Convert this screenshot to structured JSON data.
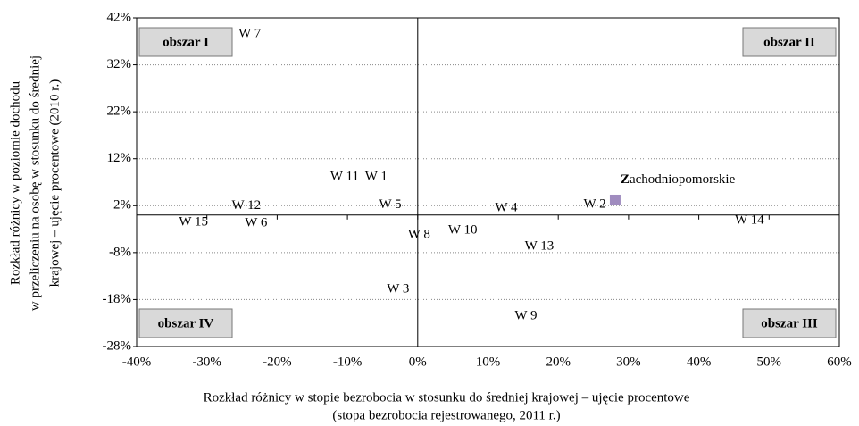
{
  "chart_data": {
    "type": "scatter",
    "x_label": [
      "Rozkład różnicy w stopie bezrobocia w stosunku do średniej krajowej – ujęcie procentowe",
      "(stopa bezrobocia rejestrowanego, 2011 r.)"
    ],
    "y_label": [
      "Rozkład różnicy w poziomie dochodu",
      "w przeliczeniu na osobę w stosunku do średniej",
      "krajowej  – ujęcie procentowe (2010 r.)"
    ],
    "xlim": [
      -40,
      60
    ],
    "ylim": [
      -28,
      42
    ],
    "xticks": [
      {
        "value": -40,
        "label": "-40%"
      },
      {
        "value": -30,
        "label": "-30%"
      },
      {
        "value": -20,
        "label": "-20%"
      },
      {
        "value": -10,
        "label": "-10%"
      },
      {
        "value": 0,
        "label": "0%"
      },
      {
        "value": 10,
        "label": "10%"
      },
      {
        "value": 20,
        "label": "20%"
      },
      {
        "value": 30,
        "label": "30%"
      },
      {
        "value": 40,
        "label": "40%"
      },
      {
        "value": 50,
        "label": "50%"
      },
      {
        "value": 60,
        "label": "60%"
      }
    ],
    "yticks": [
      {
        "value": -28,
        "label": "-28%"
      },
      {
        "value": -18,
        "label": "-18%"
      },
      {
        "value": -8,
        "label": "-8%"
      },
      {
        "value": 2,
        "label": "2%"
      },
      {
        "value": 12,
        "label": "12%"
      },
      {
        "value": 22,
        "label": "22%"
      },
      {
        "value": 32,
        "label": "32%"
      },
      {
        "value": 42,
        "label": "42%"
      }
    ],
    "grid": true,
    "series": [
      {
        "name": "Zachodniopomorskie",
        "color": "#a08cbf",
        "x": [
          28.1
        ],
        "values": [
          3.2
        ]
      }
    ],
    "annotations": [
      {
        "text": "W 7",
        "x": -23.9,
        "y": 38.6
      },
      {
        "text": "W 11",
        "x": -10.4,
        "y": 8.1
      },
      {
        "text": "W 1",
        "x": -5.9,
        "y": 8.1
      },
      {
        "text": "W 5",
        "x": -3.9,
        "y": 2.1
      },
      {
        "text": "W 12",
        "x": -24.4,
        "y": 1.9
      },
      {
        "text": "W 15",
        "x": -31.9,
        "y": -1.6
      },
      {
        "text": "W 6",
        "x": -23.0,
        "y": -1.8
      },
      {
        "text": "W 8",
        "x": 0.2,
        "y": -4.2
      },
      {
        "text": "W 10",
        "x": 6.4,
        "y": -3.3
      },
      {
        "text": "W 4",
        "x": 12.6,
        "y": 1.5
      },
      {
        "text": "W 2",
        "x": 25.2,
        "y": 2.2
      },
      {
        "text": "W 14",
        "x": 47.2,
        "y": -1.2
      },
      {
        "text": "W 13",
        "x": 17.3,
        "y": -6.7
      },
      {
        "text": "W 3",
        "x": -2.8,
        "y": -15.8
      },
      {
        "text": "W 9",
        "x": 15.4,
        "y": -21.5
      }
    ],
    "regions": [
      {
        "label": "obszar I",
        "corner": "top-left"
      },
      {
        "label": "obszar II",
        "corner": "top-right"
      },
      {
        "label": "obszar III",
        "corner": "bottom-right"
      },
      {
        "label": "obszar IV",
        "corner": "bottom-left"
      }
    ]
  }
}
